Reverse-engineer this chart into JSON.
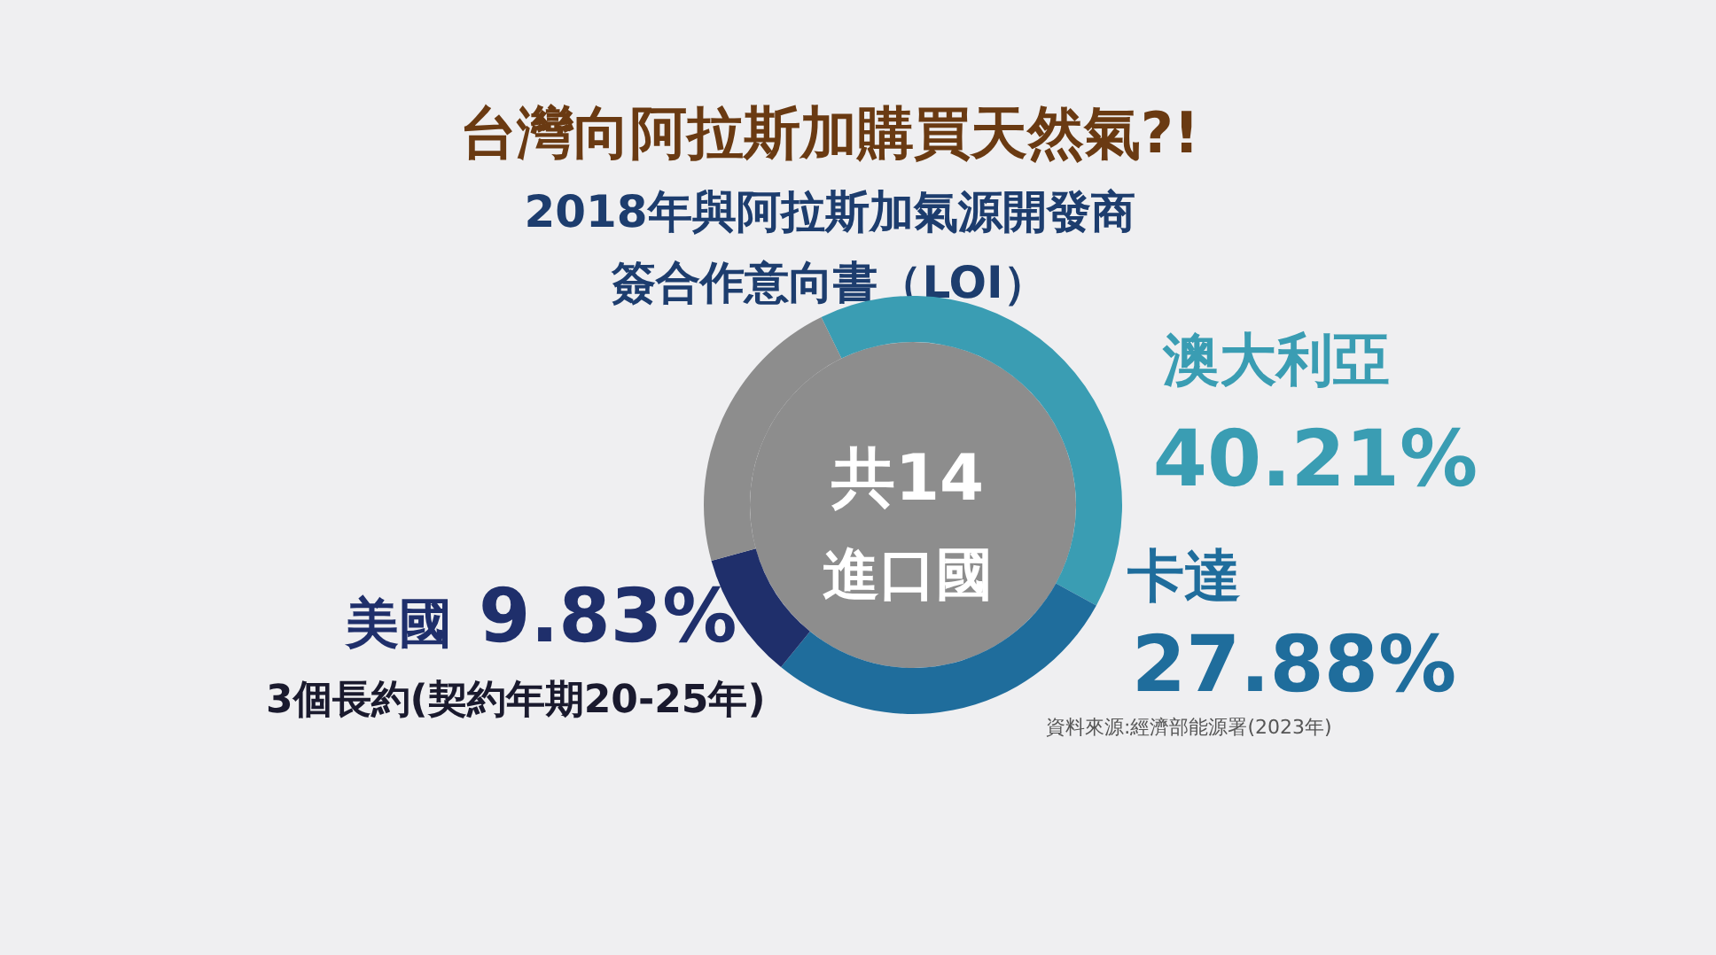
{
  "chart_data": {
    "type": "donut",
    "title": "台灣向阿拉斯加購買天然氣?!",
    "subtitle": "2018年與阿拉斯加氣源開發商簽合作意向書（LOI）",
    "categories": [
      "澳大利亞",
      "卡達",
      "美國",
      null
    ],
    "values": [
      40.21,
      27.88,
      9.83,
      22.08
    ],
    "value_labels": [
      "40.21%",
      "27.88%",
      "9.83%",
      null
    ],
    "colors": [
      "#3a9db3",
      "#1f6d9c",
      "#1f2f6b",
      "#8d8d8d"
    ],
    "annotations": [
      "共14",
      "進口國",
      "3個長約(契約年期20-25年)",
      "資料來源:經濟部能源署(2023年)"
    ]
  }
}
